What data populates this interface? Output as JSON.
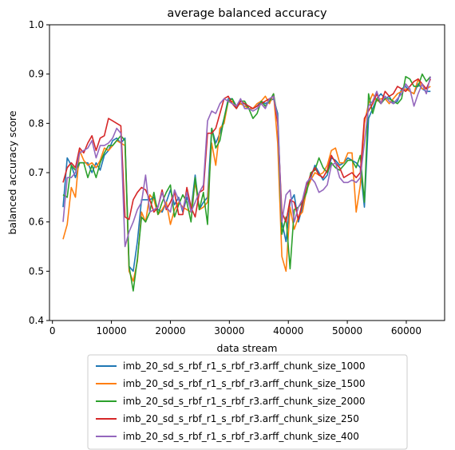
{
  "chart_data": {
    "type": "line",
    "title": "average balanced accuracy",
    "xlabel": "data stream",
    "ylabel": "balanced accuracy score",
    "xlim": [
      -500,
      66500
    ],
    "ylim": [
      0.4,
      1.0
    ],
    "xticks": [
      0,
      10000,
      20000,
      30000,
      40000,
      50000,
      60000
    ],
    "yticks": [
      0.4,
      0.5,
      0.6,
      0.7,
      0.8,
      0.9,
      1.0
    ],
    "xtick_labels": [
      "0",
      "10000",
      "20000",
      "30000",
      "40000",
      "50000",
      "60000"
    ],
    "ytick_labels": [
      "0.4",
      "0.5",
      "0.6",
      "0.7",
      "0.8",
      "0.9",
      "1.0"
    ],
    "grid": false,
    "legend_position": "below",
    "series": [
      {
        "name": "imb_20_sd_s_rbf_r1_s_rbf_r3.arff_chunk_size_1000",
        "color": "#1f77b4",
        "x": [
          1800,
          2500,
          3200,
          3900,
          4600,
          5300,
          6000,
          6700,
          7400,
          8100,
          8800,
          9500,
          10200,
          10900,
          11600,
          12300,
          13000,
          13700,
          14400,
          15100,
          15800,
          16500,
          17200,
          17900,
          18600,
          19300,
          20000,
          20700,
          21400,
          22100,
          22800,
          23500,
          24200,
          24900,
          25600,
          26300,
          27000,
          27700,
          28400,
          29100,
          29800,
          30500,
          31200,
          31900,
          32600,
          33300,
          34000,
          34700,
          35400,
          36100,
          36800,
          37500,
          38200,
          38900,
          39600,
          40300,
          41000,
          41700,
          42400,
          43100,
          43800,
          44500,
          45200,
          45900,
          46600,
          47300,
          48000,
          48700,
          49400,
          50100,
          50800,
          51500,
          52200,
          52900,
          53600,
          54300,
          55000,
          55700,
          56400,
          57100,
          57800,
          58500,
          59200,
          59900,
          60600,
          61300,
          62000,
          62700,
          63400,
          64100
        ],
        "y": [
          0.63,
          0.73,
          0.715,
          0.69,
          0.72,
          0.72,
          0.72,
          0.7,
          0.72,
          0.705,
          0.735,
          0.745,
          0.765,
          0.77,
          0.76,
          0.77,
          0.51,
          0.5,
          0.56,
          0.645,
          0.645,
          0.645,
          0.65,
          0.625,
          0.62,
          0.64,
          0.665,
          0.635,
          0.65,
          0.62,
          0.65,
          0.625,
          0.695,
          0.625,
          0.64,
          0.65,
          0.79,
          0.76,
          0.78,
          0.81,
          0.85,
          0.85,
          0.835,
          0.84,
          0.84,
          0.83,
          0.83,
          0.835,
          0.845,
          0.84,
          0.845,
          0.85,
          0.82,
          0.6,
          0.56,
          0.64,
          0.655,
          0.6,
          0.63,
          0.675,
          0.69,
          0.715,
          0.7,
          0.685,
          0.695,
          0.73,
          0.725,
          0.715,
          0.72,
          0.73,
          0.725,
          0.72,
          0.71,
          0.63,
          0.81,
          0.83,
          0.85,
          0.86,
          0.85,
          0.855,
          0.84,
          0.845,
          0.87,
          0.875,
          0.865,
          0.86,
          0.88,
          0.87,
          0.865,
          0.865
        ]
      },
      {
        "name": "imb_20_sd_s_rbf_r1_s_rbf_r3.arff_chunk_size_1500",
        "color": "#ff7f0e",
        "x": [
          1800,
          2500,
          3200,
          3900,
          4600,
          5300,
          6000,
          6700,
          7400,
          8100,
          8800,
          9500,
          10200,
          10900,
          11600,
          12300,
          13000,
          13700,
          14400,
          15100,
          15800,
          16500,
          17200,
          17900,
          18600,
          19300,
          20000,
          20700,
          21400,
          22100,
          22800,
          23500,
          24200,
          24900,
          25600,
          26300,
          27000,
          27700,
          28400,
          29100,
          29800,
          30500,
          31200,
          31900,
          32600,
          33300,
          34000,
          34700,
          35400,
          36100,
          36800,
          37500,
          38200,
          38900,
          39600,
          40300,
          41000,
          41700,
          42400,
          43100,
          43800,
          44500,
          45200,
          45900,
          46600,
          47300,
          48000,
          48700,
          49400,
          50100,
          50800,
          51500,
          52200,
          52900,
          53600,
          54300,
          55000,
          55700,
          56400,
          57100,
          57800,
          58500,
          59200,
          59900,
          60600,
          61300,
          62000,
          62700,
          63400,
          64100
        ],
        "y": [
          0.565,
          0.595,
          0.67,
          0.65,
          0.745,
          0.725,
          0.715,
          0.72,
          0.71,
          0.725,
          0.75,
          0.745,
          0.755,
          0.765,
          0.76,
          0.755,
          0.5,
          0.48,
          0.52,
          0.62,
          0.6,
          0.655,
          0.645,
          0.615,
          0.625,
          0.64,
          0.595,
          0.625,
          0.64,
          0.63,
          0.625,
          0.62,
          0.68,
          0.625,
          0.63,
          0.64,
          0.76,
          0.715,
          0.79,
          0.8,
          0.845,
          0.845,
          0.835,
          0.84,
          0.835,
          0.83,
          0.83,
          0.84,
          0.845,
          0.855,
          0.84,
          0.86,
          0.76,
          0.53,
          0.5,
          0.63,
          0.585,
          0.61,
          0.62,
          0.665,
          0.685,
          0.7,
          0.695,
          0.7,
          0.715,
          0.745,
          0.75,
          0.72,
          0.72,
          0.74,
          0.74,
          0.62,
          0.675,
          0.8,
          0.84,
          0.86,
          0.845,
          0.85,
          0.85,
          0.84,
          0.85,
          0.86,
          0.865,
          0.87,
          0.865,
          0.86,
          0.89,
          0.87,
          0.87,
          0.875
        ]
      },
      {
        "name": "imb_20_sd_s_rbf_r1_s_rbf_r3.arff_chunk_size_2000",
        "color": "#2ca02c",
        "x": [
          1800,
          2500,
          3200,
          3900,
          4600,
          5300,
          6000,
          6700,
          7400,
          8100,
          8800,
          9500,
          10200,
          10900,
          11600,
          12300,
          13000,
          13700,
          14400,
          15100,
          15800,
          16500,
          17200,
          17900,
          18600,
          19300,
          20000,
          20700,
          21400,
          22100,
          22800,
          23500,
          24200,
          24900,
          25600,
          26300,
          27000,
          27700,
          28400,
          29100,
          29800,
          30500,
          31200,
          31900,
          32600,
          33300,
          34000,
          34700,
          35400,
          36100,
          36800,
          37500,
          38200,
          38900,
          39600,
          40300,
          41000,
          41700,
          42400,
          43100,
          43800,
          44500,
          45200,
          45900,
          46600,
          47300,
          48000,
          48700,
          49400,
          50100,
          50800,
          51500,
          52200,
          52900,
          53600,
          54300,
          55000,
          55700,
          56400,
          57100,
          57800,
          58500,
          59200,
          59900,
          60600,
          61300,
          62000,
          62700,
          63400,
          64100
        ],
        "y": [
          0.655,
          0.65,
          0.715,
          0.705,
          0.72,
          0.72,
          0.69,
          0.715,
          0.69,
          0.72,
          0.74,
          0.755,
          0.755,
          0.765,
          0.775,
          0.765,
          0.51,
          0.46,
          0.525,
          0.61,
          0.6,
          0.62,
          0.66,
          0.615,
          0.64,
          0.66,
          0.675,
          0.61,
          0.635,
          0.655,
          0.64,
          0.6,
          0.69,
          0.625,
          0.66,
          0.595,
          0.79,
          0.75,
          0.765,
          0.81,
          0.845,
          0.85,
          0.83,
          0.845,
          0.845,
          0.83,
          0.81,
          0.82,
          0.845,
          0.835,
          0.845,
          0.86,
          0.81,
          0.575,
          0.61,
          0.505,
          0.625,
          0.63,
          0.64,
          0.66,
          0.7,
          0.705,
          0.73,
          0.71,
          0.7,
          0.72,
          0.71,
          0.705,
          0.715,
          0.725,
          0.725,
          0.71,
          0.735,
          0.64,
          0.86,
          0.82,
          0.85,
          0.84,
          0.85,
          0.85,
          0.845,
          0.84,
          0.85,
          0.895,
          0.89,
          0.875,
          0.875,
          0.9,
          0.885,
          0.895
        ]
      },
      {
        "name": "imb_20_sd_s_rbf_r1_s_rbf_r3.arff_chunk_size_250",
        "color": "#d62728",
        "x": [
          1800,
          2500,
          3200,
          3900,
          4600,
          5300,
          6000,
          6700,
          7400,
          8100,
          8800,
          9500,
          10200,
          10900,
          11600,
          12300,
          13000,
          13700,
          14400,
          15100,
          15800,
          16500,
          17200,
          17900,
          18600,
          19300,
          20000,
          20700,
          21400,
          22100,
          22800,
          23500,
          24200,
          24900,
          25600,
          26300,
          27000,
          27700,
          28400,
          29100,
          29800,
          30500,
          31200,
          31900,
          32600,
          33300,
          34000,
          34700,
          35400,
          36100,
          36800,
          37500,
          38200,
          38900,
          39600,
          40300,
          41000,
          41700,
          42400,
          43100,
          43800,
          44500,
          45200,
          45900,
          46600,
          47300,
          48000,
          48700,
          49400,
          50100,
          50800,
          51500,
          52200,
          52900,
          53600,
          54300,
          55000,
          55700,
          56400,
          57100,
          57800,
          58500,
          59200,
          59900,
          60600,
          61300,
          62000,
          62700,
          63400,
          64100
        ],
        "y": [
          0.68,
          0.71,
          0.72,
          0.71,
          0.75,
          0.74,
          0.76,
          0.775,
          0.745,
          0.77,
          0.775,
          0.81,
          0.805,
          0.8,
          0.795,
          0.61,
          0.605,
          0.645,
          0.66,
          0.67,
          0.665,
          0.645,
          0.62,
          0.63,
          0.665,
          0.625,
          0.64,
          0.66,
          0.615,
          0.615,
          0.67,
          0.63,
          0.61,
          0.66,
          0.665,
          0.78,
          0.78,
          0.79,
          0.82,
          0.85,
          0.855,
          0.84,
          0.83,
          0.845,
          0.84,
          0.835,
          0.83,
          0.835,
          0.84,
          0.845,
          0.85,
          0.855,
          0.8,
          0.62,
          0.6,
          0.645,
          0.64,
          0.605,
          0.64,
          0.675,
          0.695,
          0.71,
          0.695,
          0.69,
          0.705,
          0.735,
          0.72,
          0.71,
          0.69,
          0.695,
          0.7,
          0.69,
          0.7,
          0.81,
          0.825,
          0.84,
          0.86,
          0.84,
          0.865,
          0.855,
          0.86,
          0.875,
          0.87,
          0.865,
          0.875,
          0.885,
          0.89,
          0.88,
          0.87,
          0.89
        ]
      },
      {
        "name": "imb_20_sd_s_rbf_r1_s_rbf_r3.arff_chunk_size_400",
        "color": "#9467bd",
        "x": [
          1800,
          2500,
          3200,
          3900,
          4600,
          5300,
          6000,
          6700,
          7400,
          8100,
          8800,
          9500,
          10200,
          10900,
          11600,
          12300,
          13000,
          13700,
          14400,
          15100,
          15800,
          16500,
          17200,
          17900,
          18600,
          19300,
          20000,
          20700,
          21400,
          22100,
          22800,
          23500,
          24200,
          24900,
          25600,
          26300,
          27000,
          27700,
          28400,
          29100,
          29800,
          30500,
          31200,
          31900,
          32600,
          33300,
          34000,
          34700,
          35400,
          36100,
          36800,
          37500,
          38200,
          38900,
          39600,
          40300,
          41000,
          41700,
          42400,
          43100,
          43800,
          44500,
          45200,
          45900,
          46600,
          47300,
          48000,
          48700,
          49400,
          50100,
          50800,
          51500,
          52200,
          52900,
          53600,
          54300,
          55000,
          55700,
          56400,
          57100,
          57800,
          58500,
          59200,
          59900,
          60600,
          61300,
          62000,
          62700,
          63400,
          64100
        ],
        "y": [
          0.6,
          0.69,
          0.69,
          0.7,
          0.74,
          0.745,
          0.75,
          0.765,
          0.73,
          0.755,
          0.755,
          0.76,
          0.77,
          0.79,
          0.78,
          0.55,
          0.58,
          0.6,
          0.625,
          0.64,
          0.695,
          0.62,
          0.625,
          0.63,
          0.66,
          0.63,
          0.62,
          0.665,
          0.645,
          0.625,
          0.66,
          0.62,
          0.64,
          0.66,
          0.675,
          0.805,
          0.825,
          0.82,
          0.84,
          0.85,
          0.845,
          0.84,
          0.835,
          0.85,
          0.83,
          0.83,
          0.825,
          0.83,
          0.84,
          0.83,
          0.85,
          0.855,
          0.81,
          0.6,
          0.655,
          0.665,
          0.6,
          0.63,
          0.645,
          0.68,
          0.69,
          0.68,
          0.66,
          0.665,
          0.675,
          0.715,
          0.72,
          0.69,
          0.68,
          0.68,
          0.685,
          0.68,
          0.69,
          0.76,
          0.835,
          0.845,
          0.865,
          0.84,
          0.855,
          0.845,
          0.84,
          0.85,
          0.86,
          0.88,
          0.87,
          0.835,
          0.86,
          0.88,
          0.86,
          0.895
        ]
      }
    ]
  }
}
